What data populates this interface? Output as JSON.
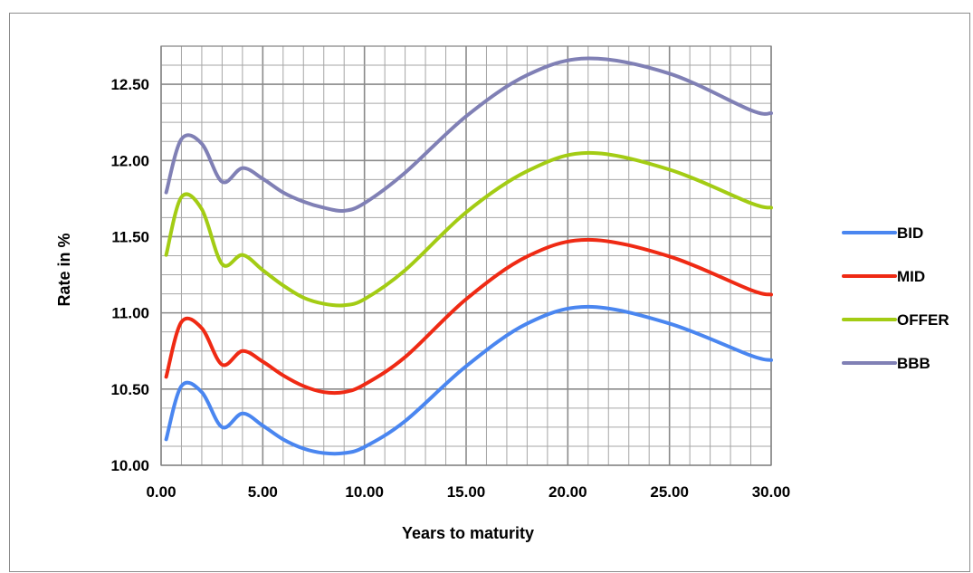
{
  "chart_data": {
    "type": "line",
    "xlabel": "Years to maturity",
    "ylabel": "Rate in %",
    "xlim": [
      0,
      30
    ],
    "ylim": [
      10,
      12.75
    ],
    "x_ticks": [
      "0.00",
      "5.00",
      "10.00",
      "15.00",
      "20.00",
      "25.00",
      "30.00"
    ],
    "y_ticks": [
      "10.00",
      "10.50",
      "11.00",
      "11.50",
      "12.00",
      "12.50"
    ],
    "grid": "on",
    "legend_position": "right",
    "x": [
      0.25,
      1,
      2,
      3,
      4,
      5,
      6,
      7,
      8,
      9,
      10,
      12,
      15,
      18,
      21,
      25,
      29,
      30
    ],
    "series": [
      {
        "name": "BID",
        "color": "#4a86f0",
        "values": [
          10.17,
          10.52,
          10.48,
          10.25,
          10.34,
          10.26,
          10.17,
          10.11,
          10.08,
          10.08,
          10.12,
          10.29,
          10.65,
          10.93,
          11.04,
          10.93,
          10.72,
          10.69
        ]
      },
      {
        "name": "MID",
        "color": "#ef2a14",
        "values": [
          10.58,
          10.94,
          10.9,
          10.66,
          10.75,
          10.68,
          10.59,
          10.52,
          10.48,
          10.48,
          10.53,
          10.71,
          11.09,
          11.37,
          11.48,
          11.37,
          11.15,
          11.12
        ]
      },
      {
        "name": "OFFER",
        "color": "#a3cc14",
        "values": [
          11.38,
          11.76,
          11.68,
          11.32,
          11.38,
          11.28,
          11.18,
          11.1,
          11.06,
          11.05,
          11.09,
          11.28,
          11.66,
          11.93,
          12.05,
          11.94,
          11.72,
          11.69
        ]
      },
      {
        "name": "BBB",
        "color": "#8080b5",
        "values": [
          11.79,
          12.14,
          12.11,
          11.86,
          11.95,
          11.88,
          11.79,
          11.73,
          11.69,
          11.67,
          11.72,
          11.92,
          12.29,
          12.56,
          12.67,
          12.57,
          12.33,
          12.31
        ]
      }
    ]
  }
}
